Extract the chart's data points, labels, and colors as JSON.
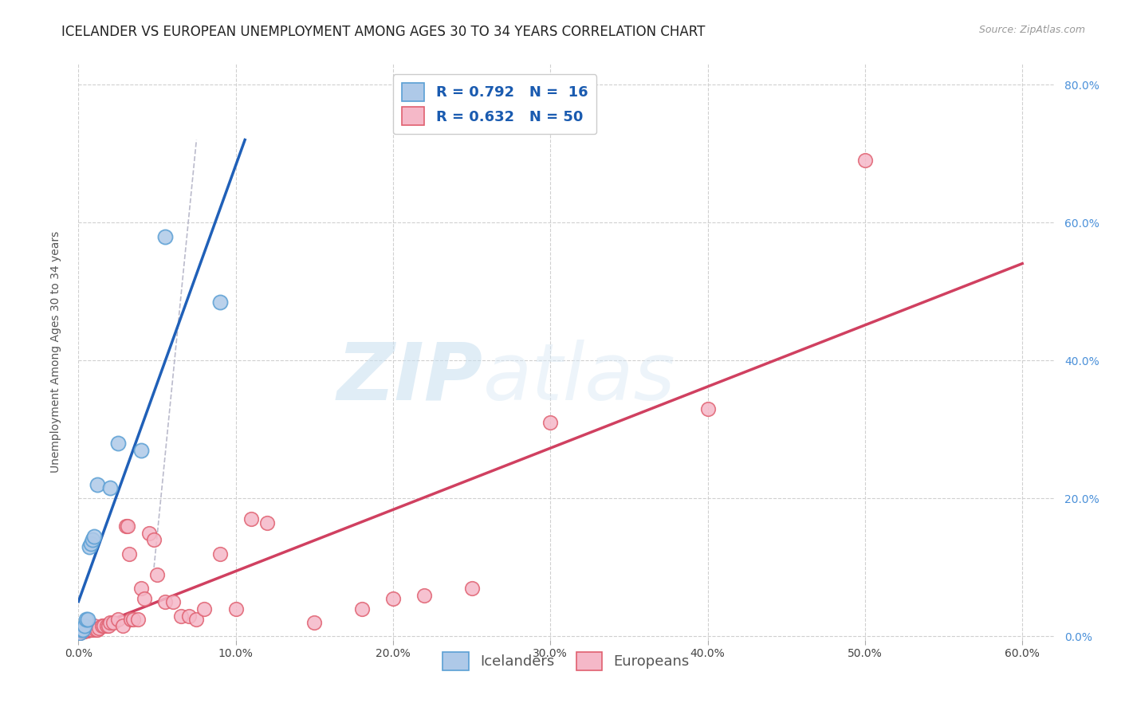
{
  "title": "ICELANDER VS EUROPEAN UNEMPLOYMENT AMONG AGES 30 TO 34 YEARS CORRELATION CHART",
  "source": "Source: ZipAtlas.com",
  "ylabel": "Unemployment Among Ages 30 to 34 years",
  "xlim": [
    0.0,
    0.62
  ],
  "ylim": [
    -0.005,
    0.83
  ],
  "xticks": [
    0.0,
    0.1,
    0.2,
    0.3,
    0.4,
    0.5,
    0.6
  ],
  "yticks": [
    0.0,
    0.2,
    0.4,
    0.6,
    0.8
  ],
  "icelanders": {
    "R": 0.792,
    "N": 16,
    "scatter_facecolor": "#aec9e8",
    "scatter_edgecolor": "#5a9fd4",
    "line_color": "#2060b8",
    "x": [
      0.001,
      0.002,
      0.003,
      0.004,
      0.005,
      0.006,
      0.007,
      0.008,
      0.009,
      0.01,
      0.012,
      0.02,
      0.025,
      0.04,
      0.055,
      0.09
    ],
    "y": [
      0.005,
      0.01,
      0.01,
      0.015,
      0.025,
      0.025,
      0.13,
      0.135,
      0.14,
      0.145,
      0.22,
      0.215,
      0.28,
      0.27,
      0.58,
      0.485
    ]
  },
  "europeans": {
    "R": 0.632,
    "N": 50,
    "scatter_facecolor": "#f5b8c8",
    "scatter_edgecolor": "#e06070",
    "line_color": "#d04060",
    "x": [
      0.001,
      0.002,
      0.003,
      0.004,
      0.005,
      0.006,
      0.007,
      0.008,
      0.009,
      0.01,
      0.011,
      0.012,
      0.013,
      0.015,
      0.016,
      0.018,
      0.019,
      0.02,
      0.022,
      0.025,
      0.028,
      0.03,
      0.031,
      0.032,
      0.033,
      0.035,
      0.038,
      0.04,
      0.042,
      0.045,
      0.048,
      0.05,
      0.055,
      0.06,
      0.065,
      0.07,
      0.075,
      0.08,
      0.09,
      0.1,
      0.11,
      0.12,
      0.15,
      0.18,
      0.2,
      0.22,
      0.25,
      0.3,
      0.4,
      0.5
    ],
    "y": [
      0.005,
      0.007,
      0.008,
      0.008,
      0.009,
      0.009,
      0.01,
      0.01,
      0.01,
      0.015,
      0.01,
      0.01,
      0.012,
      0.015,
      0.015,
      0.015,
      0.015,
      0.02,
      0.02,
      0.025,
      0.015,
      0.16,
      0.16,
      0.12,
      0.025,
      0.025,
      0.025,
      0.07,
      0.055,
      0.15,
      0.14,
      0.09,
      0.05,
      0.05,
      0.03,
      0.03,
      0.025,
      0.04,
      0.12,
      0.04,
      0.17,
      0.165,
      0.02,
      0.04,
      0.055,
      0.06,
      0.07,
      0.31,
      0.33,
      0.69
    ]
  },
  "ref_line": {
    "x": [
      0.048,
      0.075
    ],
    "y": [
      0.1,
      0.72
    ],
    "color": "#bbbbcc",
    "linestyle": "--",
    "linewidth": 1.2
  },
  "watermark_zip": "ZIP",
  "watermark_atlas": "atlas",
  "background_color": "#ffffff",
  "grid_color": "#d0d0d0",
  "title_fontsize": 12,
  "axis_label_fontsize": 10,
  "tick_fontsize": 10,
  "legend_fontsize": 13
}
